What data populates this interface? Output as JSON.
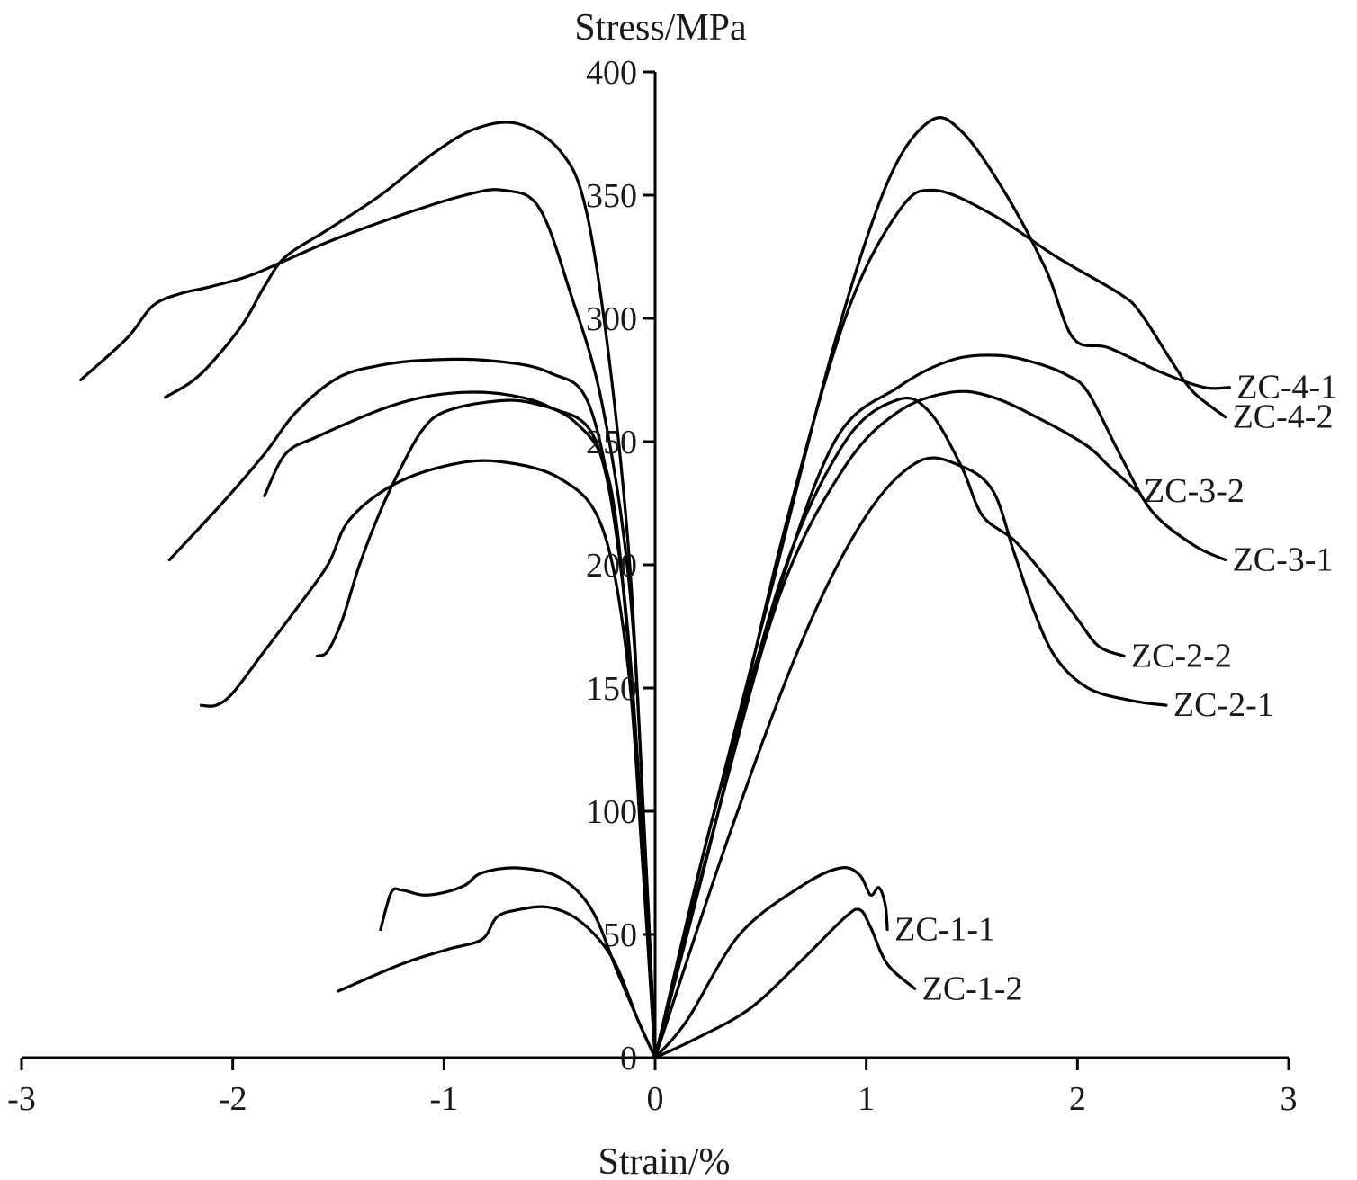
{
  "chart_data": {
    "type": "line",
    "title": "",
    "xlabel": "Strain/%",
    "ylabel": "Stress/MPa",
    "xlim": [
      -3,
      3
    ],
    "ylim": [
      0,
      400
    ],
    "xticks": [
      -3,
      -2,
      -1,
      0,
      1,
      2,
      3
    ],
    "yticks": [
      0,
      50,
      100,
      150,
      200,
      250,
      300,
      350,
      400
    ],
    "xtick_labels": [
      "-3",
      "-2",
      "-1",
      "0",
      "1",
      "2",
      "3"
    ],
    "ytick_labels": [
      "0",
      "50",
      "100",
      "150",
      "200",
      "250",
      "300",
      "350",
      "400"
    ],
    "grid": false,
    "series": [
      {
        "name": "ZC-4-1",
        "label_anchor": [
          2.72,
          272
        ],
        "left": [
          [
            0,
            0
          ],
          [
            -0.05,
            90
          ],
          [
            -0.12,
            200
          ],
          [
            -0.22,
            285
          ],
          [
            -0.33,
            345
          ],
          [
            -0.45,
            368
          ],
          [
            -0.65,
            379
          ],
          [
            -0.85,
            377
          ],
          [
            -1.05,
            367
          ],
          [
            -1.3,
            350
          ],
          [
            -1.55,
            336
          ],
          [
            -1.75,
            325
          ],
          [
            -1.85,
            313
          ],
          [
            -1.95,
            298
          ],
          [
            -2.1,
            282
          ],
          [
            -2.2,
            274
          ],
          [
            -2.32,
            268
          ]
        ],
        "right": [
          [
            0,
            0
          ],
          [
            0.25,
            90
          ],
          [
            0.55,
            190
          ],
          [
            0.85,
            290
          ],
          [
            1.1,
            355
          ],
          [
            1.3,
            380
          ],
          [
            1.45,
            376
          ],
          [
            1.65,
            352
          ],
          [
            1.85,
            320
          ],
          [
            1.98,
            292
          ],
          [
            2.15,
            288
          ],
          [
            2.4,
            278
          ],
          [
            2.6,
            272
          ],
          [
            2.72,
            272
          ]
        ]
      },
      {
        "name": "ZC-4-2",
        "label_anchor": [
          2.7,
          260
        ],
        "left": [
          [
            0,
            0
          ],
          [
            -0.05,
            90
          ],
          [
            -0.12,
            190
          ],
          [
            -0.25,
            265
          ],
          [
            -0.4,
            310
          ],
          [
            -0.55,
            345
          ],
          [
            -0.72,
            352
          ],
          [
            -0.9,
            350
          ],
          [
            -1.2,
            342
          ],
          [
            -1.55,
            331
          ],
          [
            -1.9,
            318
          ],
          [
            -2.1,
            313
          ],
          [
            -2.25,
            310
          ],
          [
            -2.38,
            305
          ],
          [
            -2.5,
            292
          ],
          [
            -2.72,
            275
          ]
        ],
        "right": [
          [
            0,
            0
          ],
          [
            0.3,
            100
          ],
          [
            0.6,
            210
          ],
          [
            0.9,
            300
          ],
          [
            1.15,
            343
          ],
          [
            1.32,
            352
          ],
          [
            1.6,
            342
          ],
          [
            1.9,
            325
          ],
          [
            2.2,
            310
          ],
          [
            2.3,
            302
          ],
          [
            2.45,
            282
          ],
          [
            2.55,
            270
          ],
          [
            2.7,
            260
          ]
        ]
      },
      {
        "name": "ZC-3-1",
        "label_anchor": [
          2.7,
          202
        ],
        "left": [
          [
            0,
            0
          ],
          [
            -0.06,
            90
          ],
          [
            -0.15,
            190
          ],
          [
            -0.3,
            262
          ],
          [
            -0.5,
            278
          ],
          [
            -0.8,
            283
          ],
          [
            -1.1,
            283
          ],
          [
            -1.3,
            281
          ],
          [
            -1.5,
            276
          ],
          [
            -1.7,
            262
          ],
          [
            -1.85,
            245
          ],
          [
            -2.05,
            225
          ],
          [
            -2.3,
            202
          ]
        ],
        "right": [
          [
            0,
            0
          ],
          [
            0.25,
            90
          ],
          [
            0.55,
            180
          ],
          [
            0.85,
            250
          ],
          [
            1.15,
            272
          ],
          [
            1.4,
            283
          ],
          [
            1.62,
            285
          ],
          [
            1.8,
            282
          ],
          [
            1.95,
            277
          ],
          [
            2.05,
            270
          ],
          [
            2.2,
            245
          ],
          [
            2.35,
            222
          ],
          [
            2.55,
            208
          ],
          [
            2.7,
            202
          ]
        ]
      },
      {
        "name": "ZC-3-2",
        "label_anchor": [
          2.28,
          230
        ],
        "left": [
          [
            0,
            0
          ],
          [
            -0.06,
            90
          ],
          [
            -0.15,
            190
          ],
          [
            -0.28,
            250
          ],
          [
            -0.5,
            264
          ],
          [
            -0.7,
            269
          ],
          [
            -0.9,
            270
          ],
          [
            -1.1,
            268
          ],
          [
            -1.3,
            263
          ],
          [
            -1.6,
            252
          ],
          [
            -1.75,
            245
          ],
          [
            -1.85,
            228
          ]
        ],
        "right": [
          [
            0,
            0
          ],
          [
            0.3,
            100
          ],
          [
            0.6,
            190
          ],
          [
            0.9,
            240
          ],
          [
            1.15,
            262
          ],
          [
            1.4,
            270
          ],
          [
            1.6,
            268
          ],
          [
            1.85,
            258
          ],
          [
            2.05,
            248
          ],
          [
            2.15,
            240
          ],
          [
            2.28,
            230
          ]
        ]
      },
      {
        "name": "ZC-2-2",
        "label_anchor": [
          2.22,
          163
        ],
        "left": [
          [
            0,
            0
          ],
          [
            -0.06,
            80
          ],
          [
            -0.13,
            170
          ],
          [
            -0.22,
            235
          ],
          [
            -0.38,
            258
          ],
          [
            -0.6,
            266
          ],
          [
            -0.8,
            266
          ],
          [
            -1.0,
            262
          ],
          [
            -1.1,
            255
          ],
          [
            -1.2,
            240
          ],
          [
            -1.3,
            222
          ],
          [
            -1.4,
            200
          ],
          [
            -1.48,
            178
          ],
          [
            -1.55,
            165
          ],
          [
            -1.6,
            163
          ]
        ],
        "right": [
          [
            0,
            0
          ],
          [
            0.3,
            100
          ],
          [
            0.6,
            195
          ],
          [
            0.9,
            250
          ],
          [
            1.15,
            267
          ],
          [
            1.3,
            262
          ],
          [
            1.45,
            240
          ],
          [
            1.55,
            220
          ],
          [
            1.7,
            210
          ],
          [
            1.85,
            195
          ],
          [
            2.0,
            178
          ],
          [
            2.1,
            167
          ],
          [
            2.22,
            163
          ]
        ]
      },
      {
        "name": "ZC-2-1",
        "label_anchor": [
          2.42,
          143
        ],
        "left": [
          [
            0,
            0
          ],
          [
            -0.06,
            80
          ],
          [
            -0.13,
            160
          ],
          [
            -0.25,
            215
          ],
          [
            -0.45,
            235
          ],
          [
            -0.75,
            242
          ],
          [
            -1.0,
            240
          ],
          [
            -1.25,
            232
          ],
          [
            -1.45,
            218
          ],
          [
            -1.55,
            200
          ],
          [
            -1.7,
            182
          ],
          [
            -1.85,
            165
          ],
          [
            -2.0,
            148
          ],
          [
            -2.08,
            143
          ],
          [
            -2.15,
            143
          ]
        ],
        "right": [
          [
            0,
            0
          ],
          [
            0.35,
            90
          ],
          [
            0.7,
            170
          ],
          [
            1.0,
            220
          ],
          [
            1.25,
            242
          ],
          [
            1.45,
            240
          ],
          [
            1.6,
            230
          ],
          [
            1.7,
            205
          ],
          [
            1.8,
            180
          ],
          [
            1.9,
            162
          ],
          [
            2.05,
            150
          ],
          [
            2.25,
            145
          ],
          [
            2.42,
            143
          ]
        ]
      },
      {
        "name": "ZC-1-1",
        "label_anchor": [
          1.1,
          52
        ],
        "left": [
          [
            0,
            0
          ],
          [
            -0.08,
            15
          ],
          [
            -0.18,
            35
          ],
          [
            -0.3,
            60
          ],
          [
            -0.45,
            73
          ],
          [
            -0.65,
            77
          ],
          [
            -0.82,
            75
          ],
          [
            -0.9,
            70
          ],
          [
            -1.0,
            67
          ],
          [
            -1.1,
            66
          ],
          [
            -1.2,
            68
          ],
          [
            -1.25,
            67
          ],
          [
            -1.3,
            52
          ]
        ],
        "right": [
          [
            0,
            0
          ],
          [
            0.15,
            15
          ],
          [
            0.4,
            50
          ],
          [
            0.7,
            70
          ],
          [
            0.88,
            77
          ],
          [
            0.97,
            74
          ],
          [
            1.02,
            66
          ],
          [
            1.06,
            69
          ],
          [
            1.09,
            62
          ],
          [
            1.1,
            52
          ]
        ]
      },
      {
        "name": "ZC-1-2",
        "label_anchor": [
          1.23,
          28
        ],
        "left": [
          [
            0,
            0
          ],
          [
            -0.08,
            15
          ],
          [
            -0.2,
            40
          ],
          [
            -0.35,
            55
          ],
          [
            -0.5,
            61
          ],
          [
            -0.65,
            60
          ],
          [
            -0.75,
            57
          ],
          [
            -0.82,
            48
          ],
          [
            -0.98,
            44
          ],
          [
            -1.2,
            38
          ],
          [
            -1.5,
            27
          ]
        ],
        "right": [
          [
            0,
            0
          ],
          [
            0.2,
            8
          ],
          [
            0.45,
            20
          ],
          [
            0.7,
            40
          ],
          [
            0.9,
            57
          ],
          [
            0.97,
            60
          ],
          [
            1.02,
            53
          ],
          [
            1.1,
            38
          ],
          [
            1.23,
            28
          ]
        ]
      }
    ]
  }
}
